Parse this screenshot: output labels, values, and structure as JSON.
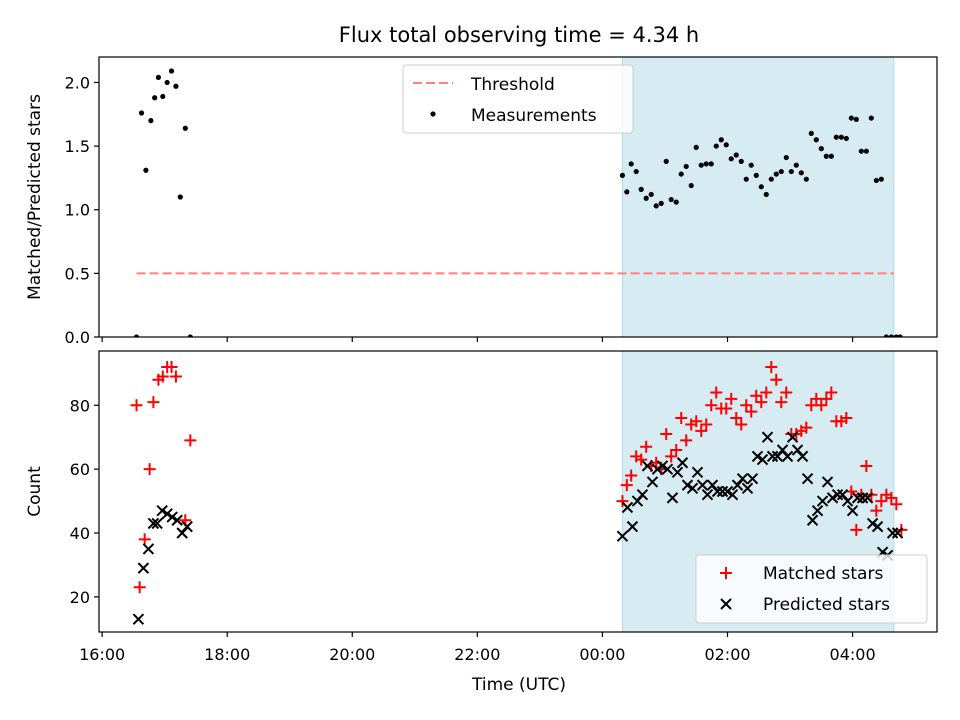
{
  "title": "Flux total observing time = 4.34 h",
  "xlabel": "Time (UTC)",
  "colors": {
    "threshold": "#ff7f7f",
    "measurement": "#000000",
    "matched": "#ff0000",
    "predicted": "#000000",
    "span": "#add8e6"
  },
  "chart_data": [
    {
      "type": "scatter",
      "ylabel": "Matched/Predicted stars",
      "ylim": [
        0,
        2.2
      ],
      "yticks": [
        0.0,
        0.5,
        1.0,
        1.5,
        2.0
      ],
      "ytick_labels": [
        "0.0",
        "0.5",
        "1.0",
        "1.5",
        "2.0"
      ],
      "xlim_hours": [
        15.95,
        29.35
      ],
      "highlight_span_hours": [
        24.32,
        28.66
      ],
      "legend": {
        "placement": "top-center",
        "threshold": "Threshold",
        "measurements": "Measurements"
      },
      "threshold": {
        "x_hours": [
          16.55,
          28.66
        ],
        "y": 0.5
      },
      "measurements": {
        "x_hours": [
          16.55,
          16.63,
          16.7,
          16.78,
          16.84,
          16.9,
          16.97,
          17.04,
          17.11,
          17.18,
          17.25,
          17.33,
          17.41,
          24.32,
          24.39,
          24.46,
          24.54,
          24.62,
          24.7,
          24.78,
          24.86,
          24.94,
          25.02,
          25.1,
          25.18,
          25.26,
          25.34,
          25.42,
          25.5,
          25.58,
          25.66,
          25.74,
          25.82,
          25.9,
          25.98,
          26.06,
          26.14,
          26.22,
          26.3,
          26.38,
          26.46,
          26.54,
          26.62,
          26.7,
          26.78,
          26.86,
          26.94,
          27.02,
          27.1,
          27.18,
          27.26,
          27.34,
          27.42,
          27.5,
          27.58,
          27.66,
          27.74,
          27.82,
          27.9,
          27.98,
          28.06,
          28.14,
          28.22,
          28.3,
          28.38,
          28.46,
          28.54,
          28.62,
          28.7,
          28.76
        ],
        "y": [
          0.0,
          1.76,
          1.31,
          1.7,
          1.88,
          2.04,
          1.89,
          2.0,
          2.09,
          1.97,
          1.1,
          1.64,
          0.0,
          1.27,
          1.14,
          1.36,
          1.3,
          1.16,
          1.09,
          1.12,
          1.03,
          1.05,
          1.38,
          1.08,
          1.06,
          1.28,
          1.34,
          1.19,
          1.49,
          1.35,
          1.36,
          1.36,
          1.5,
          1.55,
          1.51,
          1.4,
          1.43,
          1.38,
          1.24,
          1.35,
          1.27,
          1.18,
          1.12,
          1.24,
          1.28,
          1.3,
          1.41,
          1.3,
          1.35,
          1.29,
          1.24,
          1.6,
          1.55,
          1.48,
          1.42,
          1.42,
          1.57,
          1.57,
          1.56,
          1.72,
          1.71,
          1.46,
          1.46,
          1.72,
          1.23,
          1.24,
          0.0,
          0.0,
          0.0,
          0.0
        ]
      }
    },
    {
      "type": "scatter",
      "ylabel": "Count",
      "ylim": [
        9,
        97
      ],
      "yticks": [
        20,
        40,
        60,
        80
      ],
      "ytick_labels": [
        "20",
        "40",
        "60",
        "80"
      ],
      "xlim_hours": [
        15.95,
        29.35
      ],
      "xticks_hours": [
        16,
        18,
        20,
        22,
        24,
        26,
        28
      ],
      "xtick_labels": [
        "16:00",
        "18:00",
        "20:00",
        "22:00",
        "00:00",
        "02:00",
        "04:00"
      ],
      "highlight_span_hours": [
        24.32,
        28.66
      ],
      "legend": {
        "placement": "bottom-right",
        "matched": "Matched stars",
        "predicted": "Predicted stars"
      },
      "series": [
        {
          "name": "Matched stars",
          "marker": "plus",
          "x_hours": [
            16.55,
            16.6,
            16.68,
            16.76,
            16.82,
            16.9,
            16.97,
            17.04,
            17.11,
            17.18,
            17.33,
            17.41,
            24.32,
            24.39,
            24.46,
            24.54,
            24.62,
            24.7,
            24.78,
            24.86,
            24.94,
            25.02,
            25.1,
            25.18,
            25.26,
            25.34,
            25.42,
            25.5,
            25.58,
            25.66,
            25.74,
            25.82,
            25.9,
            25.98,
            26.06,
            26.14,
            26.22,
            26.3,
            26.38,
            26.46,
            26.54,
            26.62,
            26.7,
            26.78,
            26.86,
            26.94,
            27.02,
            27.1,
            27.18,
            27.26,
            27.34,
            27.42,
            27.5,
            27.58,
            27.66,
            27.74,
            27.82,
            27.9,
            27.98,
            28.06,
            28.14,
            28.22,
            28.3,
            28.38,
            28.46,
            28.54,
            28.62,
            28.7,
            28.78
          ],
          "y": [
            80,
            23,
            38,
            60,
            81,
            88,
            89,
            92,
            92,
            89,
            44,
            69,
            50,
            55,
            58,
            64,
            63,
            67,
            61,
            62,
            60,
            71,
            64,
            66,
            76,
            69,
            74,
            75,
            72,
            74,
            80,
            84,
            79,
            79,
            82,
            76,
            74,
            80,
            78,
            83,
            81,
            84,
            92,
            88,
            81,
            84,
            71,
            71,
            72,
            73,
            80,
            82,
            80,
            82,
            84,
            75,
            75,
            76,
            53,
            41,
            52,
            61,
            52,
            47,
            50,
            52,
            51,
            49,
            41
          ]
        },
        {
          "name": "Predicted stars",
          "marker": "x",
          "x_hours": [
            16.58,
            16.66,
            16.74,
            16.82,
            16.88,
            16.96,
            17.04,
            17.12,
            17.2,
            17.28,
            17.36,
            24.32,
            24.4,
            24.48,
            24.56,
            24.64,
            24.72,
            24.8,
            24.88,
            24.96,
            25.04,
            25.12,
            25.2,
            25.28,
            25.36,
            25.44,
            25.52,
            25.6,
            25.68,
            25.76,
            25.84,
            25.92,
            26.0,
            26.08,
            26.16,
            26.24,
            26.32,
            26.4,
            26.48,
            26.56,
            26.64,
            26.72,
            26.8,
            26.88,
            26.96,
            27.04,
            27.12,
            27.2,
            27.28,
            27.36,
            27.44,
            27.52,
            27.6,
            27.68,
            27.76,
            27.84,
            27.92,
            28.0,
            28.08,
            28.16,
            28.24,
            28.32,
            28.4,
            28.48,
            28.56,
            28.64,
            28.72
          ],
          "y": [
            13,
            29,
            35,
            43,
            43,
            47,
            46,
            45,
            44,
            40,
            42,
            39,
            48,
            42,
            50,
            52,
            61,
            56,
            60,
            61,
            60,
            51,
            59,
            62,
            55,
            54,
            59,
            55,
            52,
            55,
            53,
            53,
            53,
            52,
            55,
            57,
            54,
            57,
            64,
            63,
            70,
            64,
            64,
            66,
            64,
            70,
            66,
            64,
            57,
            44,
            47,
            50,
            56,
            51,
            52,
            52,
            50,
            47,
            51,
            51,
            51,
            43,
            42,
            34,
            33,
            40,
            40
          ]
        }
      ]
    }
  ]
}
